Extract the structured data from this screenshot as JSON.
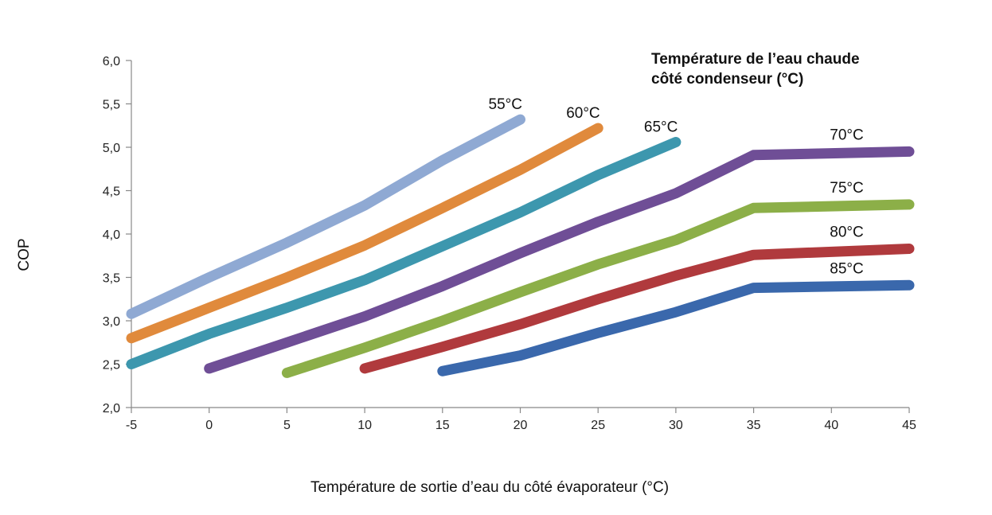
{
  "chart_data": {
    "type": "line",
    "xlabel": "Température de sortie d’eau du côté évaporateur (°C)",
    "ylabel": "COP",
    "legend_title": [
      "Température de l’eau chaude",
      "côté condenseur (°C)"
    ],
    "legend_position": "top-right",
    "grid": false,
    "xlim": [
      -5,
      45
    ],
    "ylim": [
      2.0,
      6.0
    ],
    "x_ticks": [
      -5,
      0,
      5,
      10,
      15,
      20,
      25,
      30,
      35,
      40,
      45
    ],
    "x_tick_labels": [
      "-5",
      "0",
      "5",
      "10",
      "15",
      "20",
      "25",
      "30",
      "35",
      "40",
      "45"
    ],
    "y_ticks": [
      2.0,
      2.5,
      3.0,
      3.5,
      4.0,
      4.5,
      5.0,
      5.5,
      6.0
    ],
    "y_tick_labels": [
      "2,0",
      "2,5",
      "3,0",
      "3,5",
      "4,0",
      "4,5",
      "5,0",
      "5,5",
      "6,0"
    ],
    "series": [
      {
        "name": "55°C",
        "color": "#8FA9D3",
        "x": [
          -5,
          0,
          5,
          10,
          15,
          20
        ],
        "y": [
          3.08,
          3.5,
          3.9,
          4.33,
          4.85,
          5.32
        ]
      },
      {
        "name": "60°C",
        "color": "#E08A3C",
        "x": [
          -5,
          0,
          5,
          10,
          15,
          20,
          25
        ],
        "y": [
          2.8,
          3.15,
          3.5,
          3.87,
          4.3,
          4.74,
          5.22
        ]
      },
      {
        "name": "65°C",
        "color": "#3D97AE",
        "x": [
          -5,
          0,
          5,
          10,
          15,
          20,
          25,
          30
        ],
        "y": [
          2.5,
          2.85,
          3.15,
          3.47,
          3.86,
          4.25,
          4.68,
          5.06
        ]
      },
      {
        "name": "70°C",
        "color": "#6F4E96",
        "x": [
          0,
          5,
          10,
          15,
          20,
          25,
          30,
          35,
          45
        ],
        "y": [
          2.45,
          2.75,
          3.05,
          3.4,
          3.78,
          4.14,
          4.47,
          4.91,
          4.95
        ]
      },
      {
        "name": "75°C",
        "color": "#8CAF48",
        "x": [
          5,
          10,
          15,
          20,
          25,
          30,
          35,
          45
        ],
        "y": [
          2.4,
          2.69,
          3.0,
          3.33,
          3.65,
          3.93,
          4.3,
          4.34
        ]
      },
      {
        "name": "80°C",
        "color": "#B03A3D",
        "x": [
          10,
          15,
          20,
          25,
          30,
          35,
          45
        ],
        "y": [
          2.45,
          2.7,
          2.96,
          3.25,
          3.52,
          3.76,
          3.83
        ]
      },
      {
        "name": "85°C",
        "color": "#3A68AC",
        "x": [
          15,
          20,
          25,
          30,
          35,
          45
        ],
        "y": [
          2.42,
          2.6,
          2.86,
          3.1,
          3.38,
          3.41
        ]
      }
    ]
  }
}
